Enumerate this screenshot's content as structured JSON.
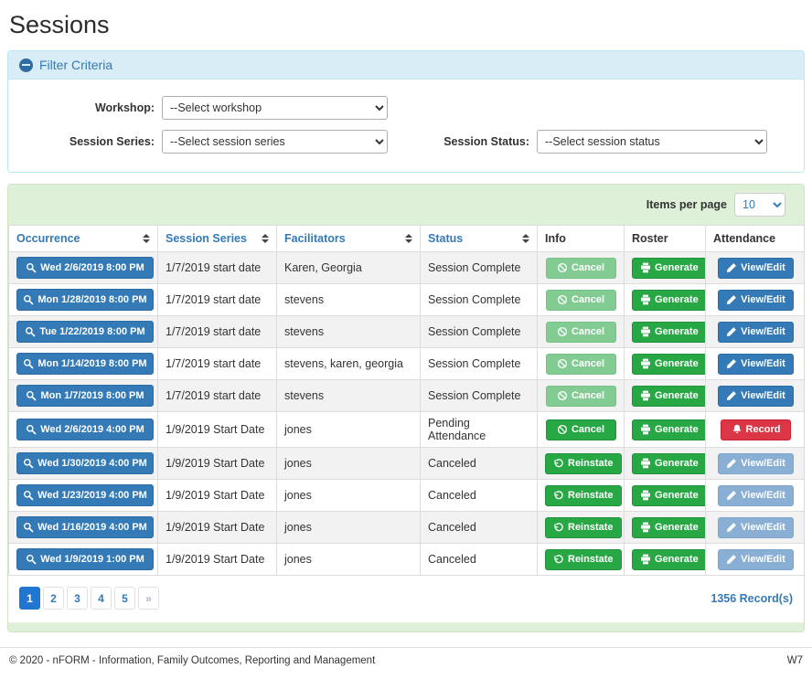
{
  "page": {
    "title": "Sessions"
  },
  "filter": {
    "title": "Filter Criteria",
    "collapse_icon": "minus-circle-icon",
    "workshop": {
      "label": "Workshop:",
      "value": "--Select workshop"
    },
    "session_series": {
      "label": "Session Series:",
      "value": "--Select session series"
    },
    "session_status": {
      "label": "Session Status:",
      "value": "--Select session status"
    }
  },
  "table_panel": {
    "items_per_page_label": "Items per page",
    "items_per_page_value": "10",
    "occurrence_icon": "search-icon",
    "columns": [
      {
        "label": "Occurrence",
        "sortable": true
      },
      {
        "label": "Session Series",
        "sortable": true
      },
      {
        "label": "Facilitators",
        "sortable": true
      },
      {
        "label": "Status",
        "sortable": true
      },
      {
        "label": "Info",
        "sortable": false
      },
      {
        "label": "Roster",
        "sortable": false
      },
      {
        "label": "Attendance",
        "sortable": false
      }
    ],
    "rows": [
      {
        "occurrence": "Wed 2/6/2019 8:00 PM",
        "series": "1/7/2019 start date",
        "facilitators": "Karen, Georgia",
        "status": "Session Complete",
        "info": {
          "label": "Cancel",
          "icon": "ban-icon",
          "variant": "success-faded"
        },
        "roster": {
          "label": "Generate",
          "icon": "printer-icon",
          "variant": "success"
        },
        "attendance": {
          "label": "View/Edit",
          "icon": "pencil-icon",
          "variant": "primary"
        }
      },
      {
        "occurrence": "Mon 1/28/2019 8:00 PM",
        "series": "1/7/2019 start date",
        "facilitators": "stevens",
        "status": "Session Complete",
        "info": {
          "label": "Cancel",
          "icon": "ban-icon",
          "variant": "success-faded"
        },
        "roster": {
          "label": "Generate",
          "icon": "printer-icon",
          "variant": "success"
        },
        "attendance": {
          "label": "View/Edit",
          "icon": "pencil-icon",
          "variant": "primary"
        }
      },
      {
        "occurrence": "Tue 1/22/2019 8:00 PM",
        "series": "1/7/2019 start date",
        "facilitators": "stevens",
        "status": "Session Complete",
        "info": {
          "label": "Cancel",
          "icon": "ban-icon",
          "variant": "success-faded"
        },
        "roster": {
          "label": "Generate",
          "icon": "printer-icon",
          "variant": "success"
        },
        "attendance": {
          "label": "View/Edit",
          "icon": "pencil-icon",
          "variant": "primary"
        }
      },
      {
        "occurrence": "Mon 1/14/2019 8:00 PM",
        "series": "1/7/2019 start date",
        "facilitators": "stevens, karen, georgia",
        "status": "Session Complete",
        "info": {
          "label": "Cancel",
          "icon": "ban-icon",
          "variant": "success-faded"
        },
        "roster": {
          "label": "Generate",
          "icon": "printer-icon",
          "variant": "success"
        },
        "attendance": {
          "label": "View/Edit",
          "icon": "pencil-icon",
          "variant": "primary"
        }
      },
      {
        "occurrence": "Mon 1/7/2019 8:00 PM",
        "series": "1/7/2019 start date",
        "facilitators": "stevens",
        "status": "Session Complete",
        "info": {
          "label": "Cancel",
          "icon": "ban-icon",
          "variant": "success-faded"
        },
        "roster": {
          "label": "Generate",
          "icon": "printer-icon",
          "variant": "success"
        },
        "attendance": {
          "label": "View/Edit",
          "icon": "pencil-icon",
          "variant": "primary"
        }
      },
      {
        "occurrence": "Wed 2/6/2019 4:00 PM",
        "series": "1/9/2019 Start Date",
        "facilitators": "jones",
        "status": "Pending Attendance",
        "info": {
          "label": "Cancel",
          "icon": "ban-icon",
          "variant": "success"
        },
        "roster": {
          "label": "Generate",
          "icon": "printer-icon",
          "variant": "success"
        },
        "attendance": {
          "label": "Record",
          "icon": "bell-icon",
          "variant": "danger"
        }
      },
      {
        "occurrence": "Wed 1/30/2019 4:00 PM",
        "series": "1/9/2019 Start Date",
        "facilitators": "jones",
        "status": "Canceled",
        "info": {
          "label": "Reinstate",
          "icon": "undo-icon",
          "variant": "success"
        },
        "roster": {
          "label": "Generate",
          "icon": "printer-icon",
          "variant": "success"
        },
        "attendance": {
          "label": "View/Edit",
          "icon": "pencil-icon",
          "variant": "primary-faded"
        }
      },
      {
        "occurrence": "Wed 1/23/2019 4:00 PM",
        "series": "1/9/2019 Start Date",
        "facilitators": "jones",
        "status": "Canceled",
        "info": {
          "label": "Reinstate",
          "icon": "undo-icon",
          "variant": "success"
        },
        "roster": {
          "label": "Generate",
          "icon": "printer-icon",
          "variant": "success"
        },
        "attendance": {
          "label": "View/Edit",
          "icon": "pencil-icon",
          "variant": "primary-faded"
        }
      },
      {
        "occurrence": "Wed 1/16/2019 4:00 PM",
        "series": "1/9/2019 Start Date",
        "facilitators": "jones",
        "status": "Canceled",
        "info": {
          "label": "Reinstate",
          "icon": "undo-icon",
          "variant": "success"
        },
        "roster": {
          "label": "Generate",
          "icon": "printer-icon",
          "variant": "success"
        },
        "attendance": {
          "label": "View/Edit",
          "icon": "pencil-icon",
          "variant": "primary-faded"
        }
      },
      {
        "occurrence": "Wed 1/9/2019 1:00 PM",
        "series": "1/9/2019 Start Date",
        "facilitators": "jones",
        "status": "Canceled",
        "info": {
          "label": "Reinstate",
          "icon": "undo-icon",
          "variant": "success"
        },
        "roster": {
          "label": "Generate",
          "icon": "printer-icon",
          "variant": "success"
        },
        "attendance": {
          "label": "View/Edit",
          "icon": "pencil-icon",
          "variant": "primary-faded"
        }
      }
    ],
    "pagination": {
      "pages": [
        "1",
        "2",
        "3",
        "4",
        "5",
        "»"
      ],
      "active": "1"
    },
    "record_count": "1356 Record(s)"
  },
  "footer": {
    "copyright": "© 2020 - nFORM - Information, Family Outcomes, Reporting and Management",
    "version": "W7"
  },
  "colors": {
    "accent_blue": "#337ab7",
    "success_green": "#28a745",
    "danger_red": "#dc3545",
    "filter_header_bg": "#d9edf7",
    "panel_green_bg": "#dff0d8"
  }
}
